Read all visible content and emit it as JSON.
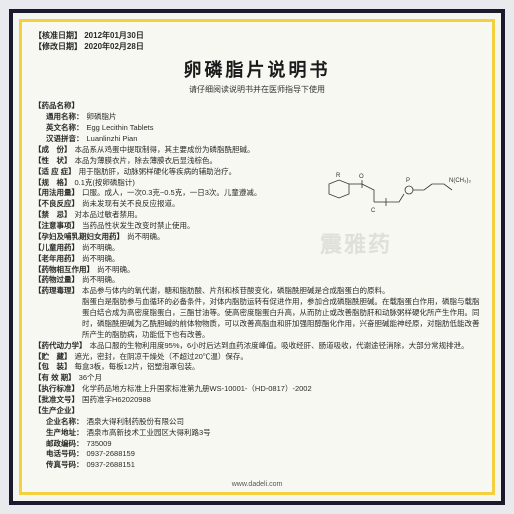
{
  "header": {
    "approval_date_label": "【核准日期】",
    "approval_date": "2012年01月30日",
    "revision_date_label": "【修改日期】",
    "revision_date": "2020年02月28日"
  },
  "title": "卵磷脂片说明书",
  "subtitle": "请仔细阅读说明书并在医师指导下使用",
  "rows": [
    {
      "label": "【药品名称】",
      "value": ""
    },
    {
      "label": "通用名称：",
      "value": "卵磷脂片",
      "indent": true
    },
    {
      "label": "英文名称：",
      "value": "Egg Lecithin Tablets",
      "indent": true
    },
    {
      "label": "汉语拼音：",
      "value": "Luanlinzhi Pian",
      "indent": true
    },
    {
      "label": "【成　份】",
      "value": "本品系从鸡蛋中提取制得，其主要成份为磷脂酰胆碱。"
    },
    {
      "label": "【性　状】",
      "value": "本品为薄膜衣片，除去薄膜衣后显浅棕色。"
    },
    {
      "label": "【适 应 症】",
      "value": "用于脂肪肝，动脉粥样硬化等疾病的辅助治疗。"
    },
    {
      "label": "【规　格】",
      "value": "0.1克(按卵磷脂计)"
    },
    {
      "label": "【用法用量】",
      "value": "口服。成人，一次0.3克~0.5克，一日3次。儿童遵减。"
    },
    {
      "label": "【不良反应】",
      "value": "尚未发现有关不良反应报道。"
    },
    {
      "label": "【禁　忌】",
      "value": "对本品过敏者禁用。"
    },
    {
      "label": "【注意事项】",
      "value": "当药品性状发生改变时禁止使用。"
    },
    {
      "label": "【孕妇及哺乳期妇女用药】",
      "value": "尚不明确。"
    },
    {
      "label": "【儿童用药】",
      "value": "尚不明确。"
    },
    {
      "label": "【老年用药】",
      "value": "尚不明确。"
    },
    {
      "label": "【药物相互作用】",
      "value": "尚不明确。"
    },
    {
      "label": "【药物过量】",
      "value": "尚不明确。"
    },
    {
      "label": "【药理毒理】",
      "value": "本品参与体内的氧代谢，糖和脂肪酸、片剂和核苷酸变化，磷脂酰胆碱是合成脂蛋白的原料。"
    },
    {
      "label": "",
      "value": "脂蛋白是脂肪参与血循环的必备条件，对体内脂肪运转有促进作用，参加合成磷脂酰胆碱。在载脂蛋白作用，磷脂与载脂蛋白结合成为高密度脂蛋白，三酯甘油等。使高密度脂蛋白升高，从而防止或改善脂肪肝和动脉粥样硬化所产生作用。同时，磷脂酰胆碱为乙酰胆碱的前体物物质，可以改善高脂血和肝加强阻醇酯化作用，兴奋胆碱能神经原，对脂肪低能改善所产生的脂肪病，功能低下也有改善。",
      "sub": true
    },
    {
      "label": "【药代动力学】",
      "value": "本品口服的生物利用度95%，6小时后达到血药浓度峰值。吸收经肝、肠道吸收，代谢途径消除，大部分常规排泄。"
    },
    {
      "label": "【贮　藏】",
      "value": "遮光，密封，在阴凉干燥处（不超过20℃温）保存。"
    },
    {
      "label": "【包　装】",
      "value": "每盒3板，每板12片，铝塑泡罩包装。"
    },
    {
      "label": "【有 效 期】",
      "value": "36个月"
    },
    {
      "label": "【执行标准】",
      "value": "化学药品地方标准上升国家标准第九册WS-10001-（HD-0817）-2002"
    },
    {
      "label": "【批准文号】",
      "value": "国药准字H62020988"
    },
    {
      "label": "【生产企业】",
      "value": ""
    },
    {
      "label": "企业名称：",
      "value": "酒泉大得利制药股份有限公司",
      "indent": true
    },
    {
      "label": "生产地址：",
      "value": "酒泉市高新技术工业园区大得利路3号",
      "indent": true
    },
    {
      "label": "邮政编码：",
      "value": "735009",
      "indent": true
    },
    {
      "label": "电话号码：",
      "value": "0937-2688159",
      "indent": true
    },
    {
      "label": "传真号码：",
      "value": "0937-2688151",
      "indent": true
    }
  ],
  "footer_url": "www.dadeli.com",
  "watermark": "震雅药",
  "diagram": {
    "labels": [
      "R",
      "O",
      "P",
      "C",
      "N(CH₃)₃"
    ],
    "stroke_color": "#333333"
  }
}
